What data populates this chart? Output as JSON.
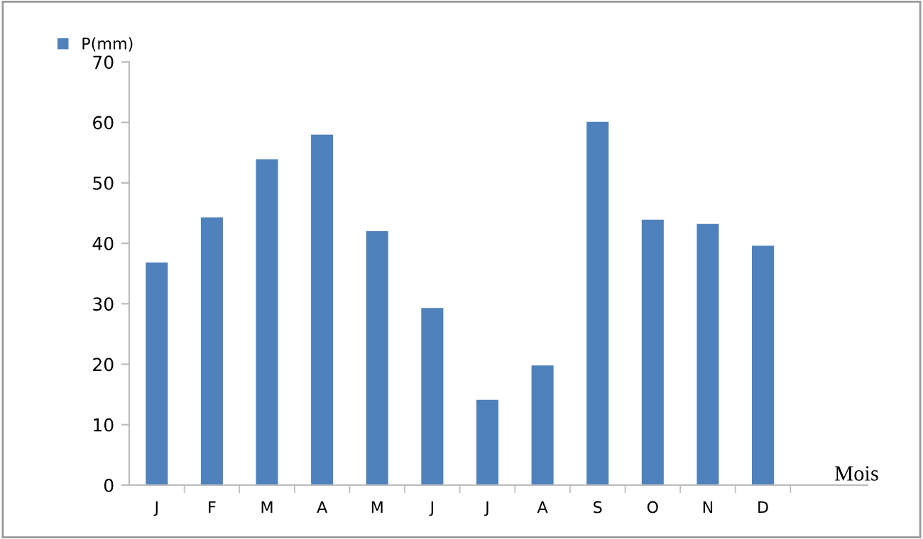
{
  "chart_data": {
    "type": "bar",
    "xlabel": "Mois",
    "categories": [
      "J",
      "F",
      "M",
      "A",
      "M",
      "J",
      "J",
      "A",
      "S",
      "O",
      "N",
      "D"
    ],
    "series": [
      {
        "name": "P(mm)",
        "color": "#4f81bd",
        "values": [
          36.8,
          44.3,
          53.9,
          58.0,
          42.0,
          29.3,
          14.1,
          19.8,
          60.1,
          43.9,
          43.2,
          39.6
        ]
      }
    ],
    "ylim": [
      0,
      70
    ],
    "yticks": [
      0,
      10,
      20,
      30,
      40,
      50,
      60,
      70
    ],
    "grid": false,
    "legend": "top left"
  }
}
